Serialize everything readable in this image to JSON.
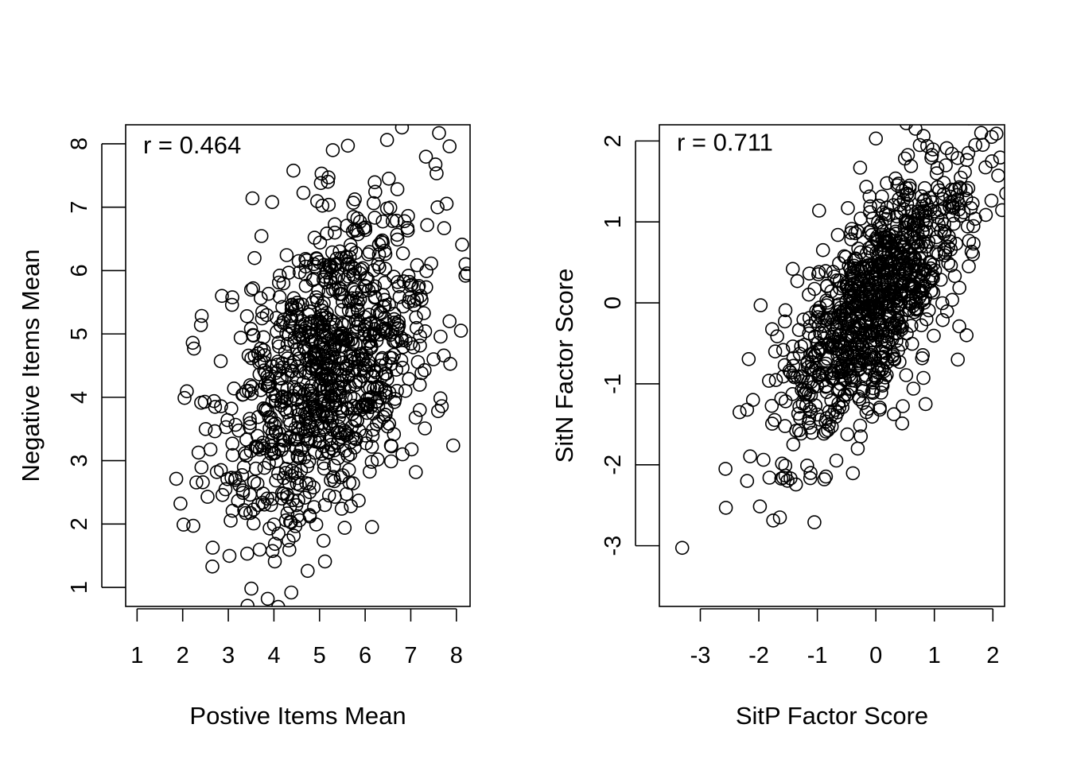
{
  "chart_data": [
    {
      "type": "scatter",
      "xlabel": "Postive Items Mean",
      "ylabel": "Negative Items Mean",
      "xlim": [
        0.75,
        8.3
      ],
      "ylim": [
        0.7,
        8.3
      ],
      "xticks": [
        1,
        2,
        3,
        4,
        5,
        6,
        7,
        8
      ],
      "xtick_labels": [
        "1",
        "2",
        "3",
        "4",
        "5",
        "6",
        "7",
        "8"
      ],
      "yticks": [
        1,
        2,
        3,
        4,
        5,
        6,
        7,
        8
      ],
      "ytick_labels": [
        "1",
        "2",
        "3",
        "4",
        "5",
        "6",
        "7",
        "8"
      ],
      "annotation": "r =  0.464",
      "correlation": 0.464,
      "n_points": 1000,
      "x_mean": 5.2,
      "x_sd": 1.15,
      "y_mean": 4.5,
      "y_sd": 1.3,
      "marker": "open-circle",
      "grid": false,
      "legend": "none",
      "points": [
        [
          2.04,
          3.99
        ],
        [
          2.22,
          4.86
        ],
        [
          2.4,
          5.14
        ],
        [
          2.65,
          1.33
        ],
        [
          2.02,
          1.99
        ],
        [
          4.38,
          0.92
        ],
        [
          5.55,
          1.94
        ],
        [
          7.11,
          2.82
        ],
        [
          7.68,
          3.86
        ],
        [
          7.93,
          3.24
        ],
        [
          8.1,
          5.05
        ],
        [
          8.2,
          6.1
        ],
        [
          7.85,
          7.96
        ],
        [
          7.62,
          8.17
        ],
        [
          6.48,
          8.06
        ],
        [
          5.29,
          7.9
        ],
        [
          3.53,
          7.14
        ],
        [
          2.86,
          5.6
        ],
        [
          3.32,
          2.53
        ],
        [
          4.02,
          1.41
        ],
        [
          4.74,
          1.26
        ],
        [
          5.12,
          1.41
        ],
        [
          6.82,
          3.1
        ],
        [
          7.5,
          4.6
        ],
        [
          7.85,
          5.2
        ]
      ]
    },
    {
      "type": "scatter",
      "xlabel": "SitP Factor Score",
      "ylabel": "SitN Factor Score",
      "xlim": [
        -3.7,
        2.2
      ],
      "ylim": [
        -3.75,
        2.2
      ],
      "xticks": [
        -3,
        -2,
        -1,
        0,
        1,
        2
      ],
      "xtick_labels": [
        "-3",
        "-2",
        "-1",
        "0",
        "1",
        "2"
      ],
      "yticks": [
        -3,
        -2,
        -1,
        0,
        1,
        2
      ],
      "ytick_labels": [
        "-3",
        "-2",
        "-1",
        "0",
        "1",
        "2"
      ],
      "annotation": "r =  0.711",
      "correlation": 0.711,
      "n_points": 1000,
      "x_mean": 0.0,
      "x_sd": 0.8,
      "y_mean": 0.0,
      "y_sd": 0.85,
      "marker": "open-circle",
      "grid": false,
      "legend": "none",
      "points": [
        [
          -2.57,
          -2.05
        ],
        [
          -2.2,
          -2.2
        ],
        [
          -2.33,
          -1.35
        ],
        [
          -2.2,
          -1.32
        ],
        [
          -1.97,
          -0.03
        ],
        [
          -1.64,
          -2.65
        ],
        [
          -1.05,
          -2.71
        ],
        [
          -0.88,
          -2.18
        ],
        [
          -0.31,
          -1.8
        ],
        [
          0.85,
          -1.25
        ],
        [
          1.4,
          -0.7
        ],
        [
          1.55,
          -0.4
        ],
        [
          1.66,
          0.6
        ],
        [
          1.58,
          1.85
        ],
        [
          1.7,
          1.95
        ],
        [
          1.8,
          2.1
        ],
        [
          1.98,
          2.05
        ],
        [
          0.52,
          2.22
        ],
        [
          0.0,
          2.03
        ],
        [
          -0.97,
          1.14
        ],
        [
          -1.42,
          0.42
        ],
        [
          -1.72,
          -0.6
        ]
      ]
    }
  ]
}
